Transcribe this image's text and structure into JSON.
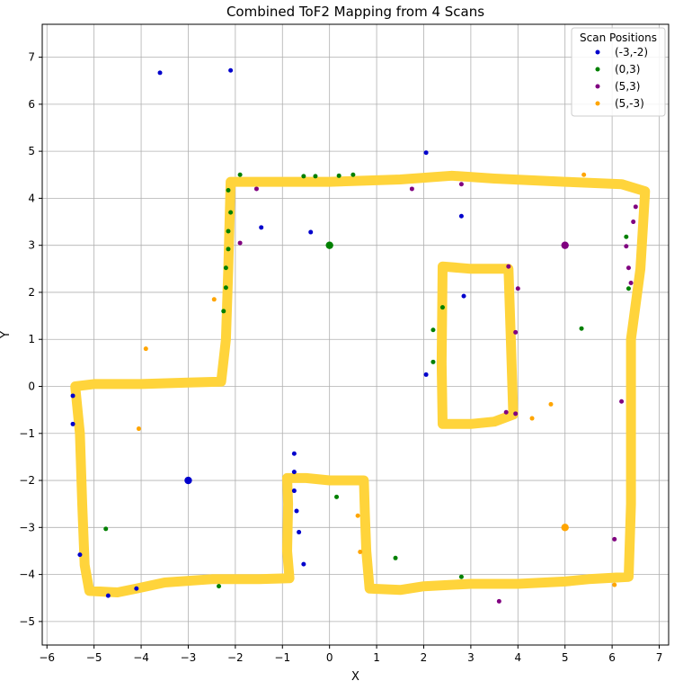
{
  "chart_data": {
    "type": "scatter",
    "title": "Combined ToF2 Mapping from 4 Scans",
    "xlabel": "X",
    "ylabel": "Y",
    "xlim": [
      -6.1,
      7.2
    ],
    "ylim": [
      -5.5,
      7.7
    ],
    "xticks": [
      -6,
      -5,
      -4,
      -3,
      -2,
      -1,
      0,
      1,
      2,
      3,
      4,
      5,
      6,
      7
    ],
    "yticks": [
      -5,
      -4,
      -3,
      -2,
      -1,
      0,
      1,
      2,
      3,
      4,
      5,
      6,
      7
    ],
    "xtick_labels": [
      "−6",
      "−5",
      "−4",
      "−3",
      "−2",
      "−1",
      "0",
      "1",
      "2",
      "3",
      "4",
      "5",
      "6",
      "7"
    ],
    "ytick_labels": [
      "−5",
      "−4",
      "−3",
      "−2",
      "−1",
      "0",
      "1",
      "2",
      "3",
      "4",
      "5",
      "6",
      "7"
    ],
    "grid": true,
    "legend": {
      "title": "Scan Positions",
      "placement": "upper right",
      "entries": [
        {
          "label": "(-3,-2)",
          "color": "#0000cc"
        },
        {
          "label": "(0,3)",
          "color": "#008000"
        },
        {
          "label": "(5,3)",
          "color": "#800080"
        },
        {
          "label": "(5,-3)",
          "color": "#ffa500"
        }
      ]
    },
    "map_outline": {
      "color": "#ffd43b",
      "outer": [
        [
          -2.1,
          4.35
        ],
        [
          -1.5,
          4.35
        ],
        [
          0,
          4.35
        ],
        [
          1.5,
          4.4
        ],
        [
          2.6,
          4.48
        ],
        [
          3.5,
          4.42
        ],
        [
          5,
          4.35
        ],
        [
          6.2,
          4.3
        ],
        [
          6.7,
          4.15
        ],
        [
          6.6,
          2.5
        ],
        [
          6.4,
          1.0
        ],
        [
          6.4,
          -0.5
        ],
        [
          6.4,
          -2.5
        ],
        [
          6.35,
          -4.05
        ],
        [
          5.5,
          -4.1
        ],
        [
          5,
          -4.15
        ],
        [
          4,
          -4.2
        ],
        [
          3,
          -4.2
        ],
        [
          2,
          -4.25
        ],
        [
          1.5,
          -4.33
        ],
        [
          0.85,
          -4.3
        ],
        [
          0.78,
          -3.5
        ],
        [
          0.75,
          -2.7
        ],
        [
          0.73,
          -2.0
        ],
        [
          0.5,
          -2.0
        ],
        [
          0,
          -2.0
        ],
        [
          -0.5,
          -1.95
        ],
        [
          -0.9,
          -1.95
        ],
        [
          -0.88,
          -2.5
        ],
        [
          -0.9,
          -3.5
        ],
        [
          -0.85,
          -4.08
        ],
        [
          -1.5,
          -4.1
        ],
        [
          -2.5,
          -4.1
        ],
        [
          -3.5,
          -4.17
        ],
        [
          -4.1,
          -4.3
        ],
        [
          -4.5,
          -4.38
        ],
        [
          -5.1,
          -4.35
        ],
        [
          -5.2,
          -3.8
        ],
        [
          -5.25,
          -2.5
        ],
        [
          -5.3,
          -1.0
        ],
        [
          -5.4,
          0
        ],
        [
          -5.0,
          0.05
        ],
        [
          -4,
          0.05
        ],
        [
          -3,
          0.08
        ],
        [
          -2.3,
          0.1
        ],
        [
          -2.2,
          1.0
        ],
        [
          -2.15,
          2.5
        ],
        [
          -2.1,
          4.35
        ]
      ],
      "inner": [
        [
          2.4,
          2.55
        ],
        [
          3.0,
          2.5
        ],
        [
          3.8,
          2.5
        ],
        [
          3.85,
          1.0
        ],
        [
          3.9,
          -0.6
        ],
        [
          3.5,
          -0.75
        ],
        [
          3.0,
          -0.8
        ],
        [
          2.4,
          -0.8
        ],
        [
          2.38,
          0.5
        ],
        [
          2.4,
          2.55
        ]
      ]
    },
    "series": [
      {
        "name": "(-3,-2)",
        "color": "#0000cc",
        "x": [
          -3.6,
          -2.1,
          2.05,
          2.8,
          -1.45,
          -0.4,
          2.05,
          2.85,
          -5.45,
          -5.45,
          -5.3,
          -0.75,
          -0.75,
          -0.75,
          -0.7,
          -0.65,
          -0.55,
          -4.7,
          -4.1,
          -3.0
        ],
        "y": [
          6.67,
          6.72,
          4.97,
          3.62,
          3.38,
          3.28,
          0.25,
          1.92,
          -0.2,
          -0.8,
          -3.58,
          -1.43,
          -1.82,
          -2.22,
          -2.65,
          -3.1,
          -3.78,
          -4.45,
          -4.3,
          -2.0
        ],
        "sizes": [
          3,
          3,
          3,
          3,
          3,
          3,
          3,
          3,
          3,
          3,
          3,
          3,
          3,
          3,
          3,
          3,
          3,
          3,
          3,
          6
        ]
      },
      {
        "name": "(0,3)",
        "color": "#008000",
        "x": [
          -1.9,
          -0.55,
          -0.3,
          0.2,
          0.5,
          -2.15,
          -2.1,
          -2.15,
          -2.15,
          -2.2,
          -2.2,
          -2.25,
          2.2,
          2.4,
          2.2,
          5.35,
          6.3,
          6.35,
          -4.75,
          0.15,
          1.4,
          2.8,
          -2.35,
          0.0
        ],
        "y": [
          4.5,
          4.47,
          4.47,
          4.48,
          4.5,
          4.17,
          3.7,
          3.3,
          2.92,
          2.52,
          2.1,
          1.6,
          1.2,
          1.68,
          0.52,
          1.23,
          3.18,
          2.08,
          -3.03,
          -2.35,
          -3.65,
          -4.05,
          -4.25,
          3.0
        ],
        "sizes": [
          3,
          3,
          3,
          3,
          3,
          3,
          3,
          3,
          3,
          3,
          3,
          3,
          3,
          3,
          3,
          3,
          3,
          3,
          3,
          3,
          3,
          3,
          3,
          6
        ]
      },
      {
        "name": "(5,3)",
        "color": "#800080",
        "x": [
          -1.55,
          -1.9,
          1.75,
          2.8,
          3.8,
          4.0,
          3.95,
          3.95,
          3.75,
          6.5,
          6.45,
          6.3,
          6.35,
          6.4,
          6.2,
          6.05,
          3.6,
          5.0
        ],
        "y": [
          4.2,
          3.05,
          4.2,
          4.3,
          2.55,
          2.08,
          1.15,
          -0.58,
          -0.55,
          3.82,
          3.5,
          2.98,
          2.52,
          2.2,
          -0.32,
          -3.25,
          -4.57,
          3.0
        ],
        "sizes": [
          3,
          3,
          3,
          3,
          3,
          3,
          3,
          3,
          3,
          3,
          3,
          3,
          3,
          3,
          3,
          3,
          3,
          6
        ]
      },
      {
        "name": "(5,-3)",
        "color": "#ffa500",
        "x": [
          5.4,
          -2.45,
          -3.9,
          -4.05,
          0.6,
          0.65,
          4.3,
          4.7,
          6.05,
          5.0
        ],
        "y": [
          4.5,
          1.85,
          0.8,
          -0.9,
          -2.75,
          -3.52,
          -0.68,
          -0.38,
          -4.22,
          -3.0
        ],
        "sizes": [
          3,
          3,
          3,
          3,
          3,
          3,
          3,
          3,
          3,
          6
        ]
      }
    ]
  }
}
